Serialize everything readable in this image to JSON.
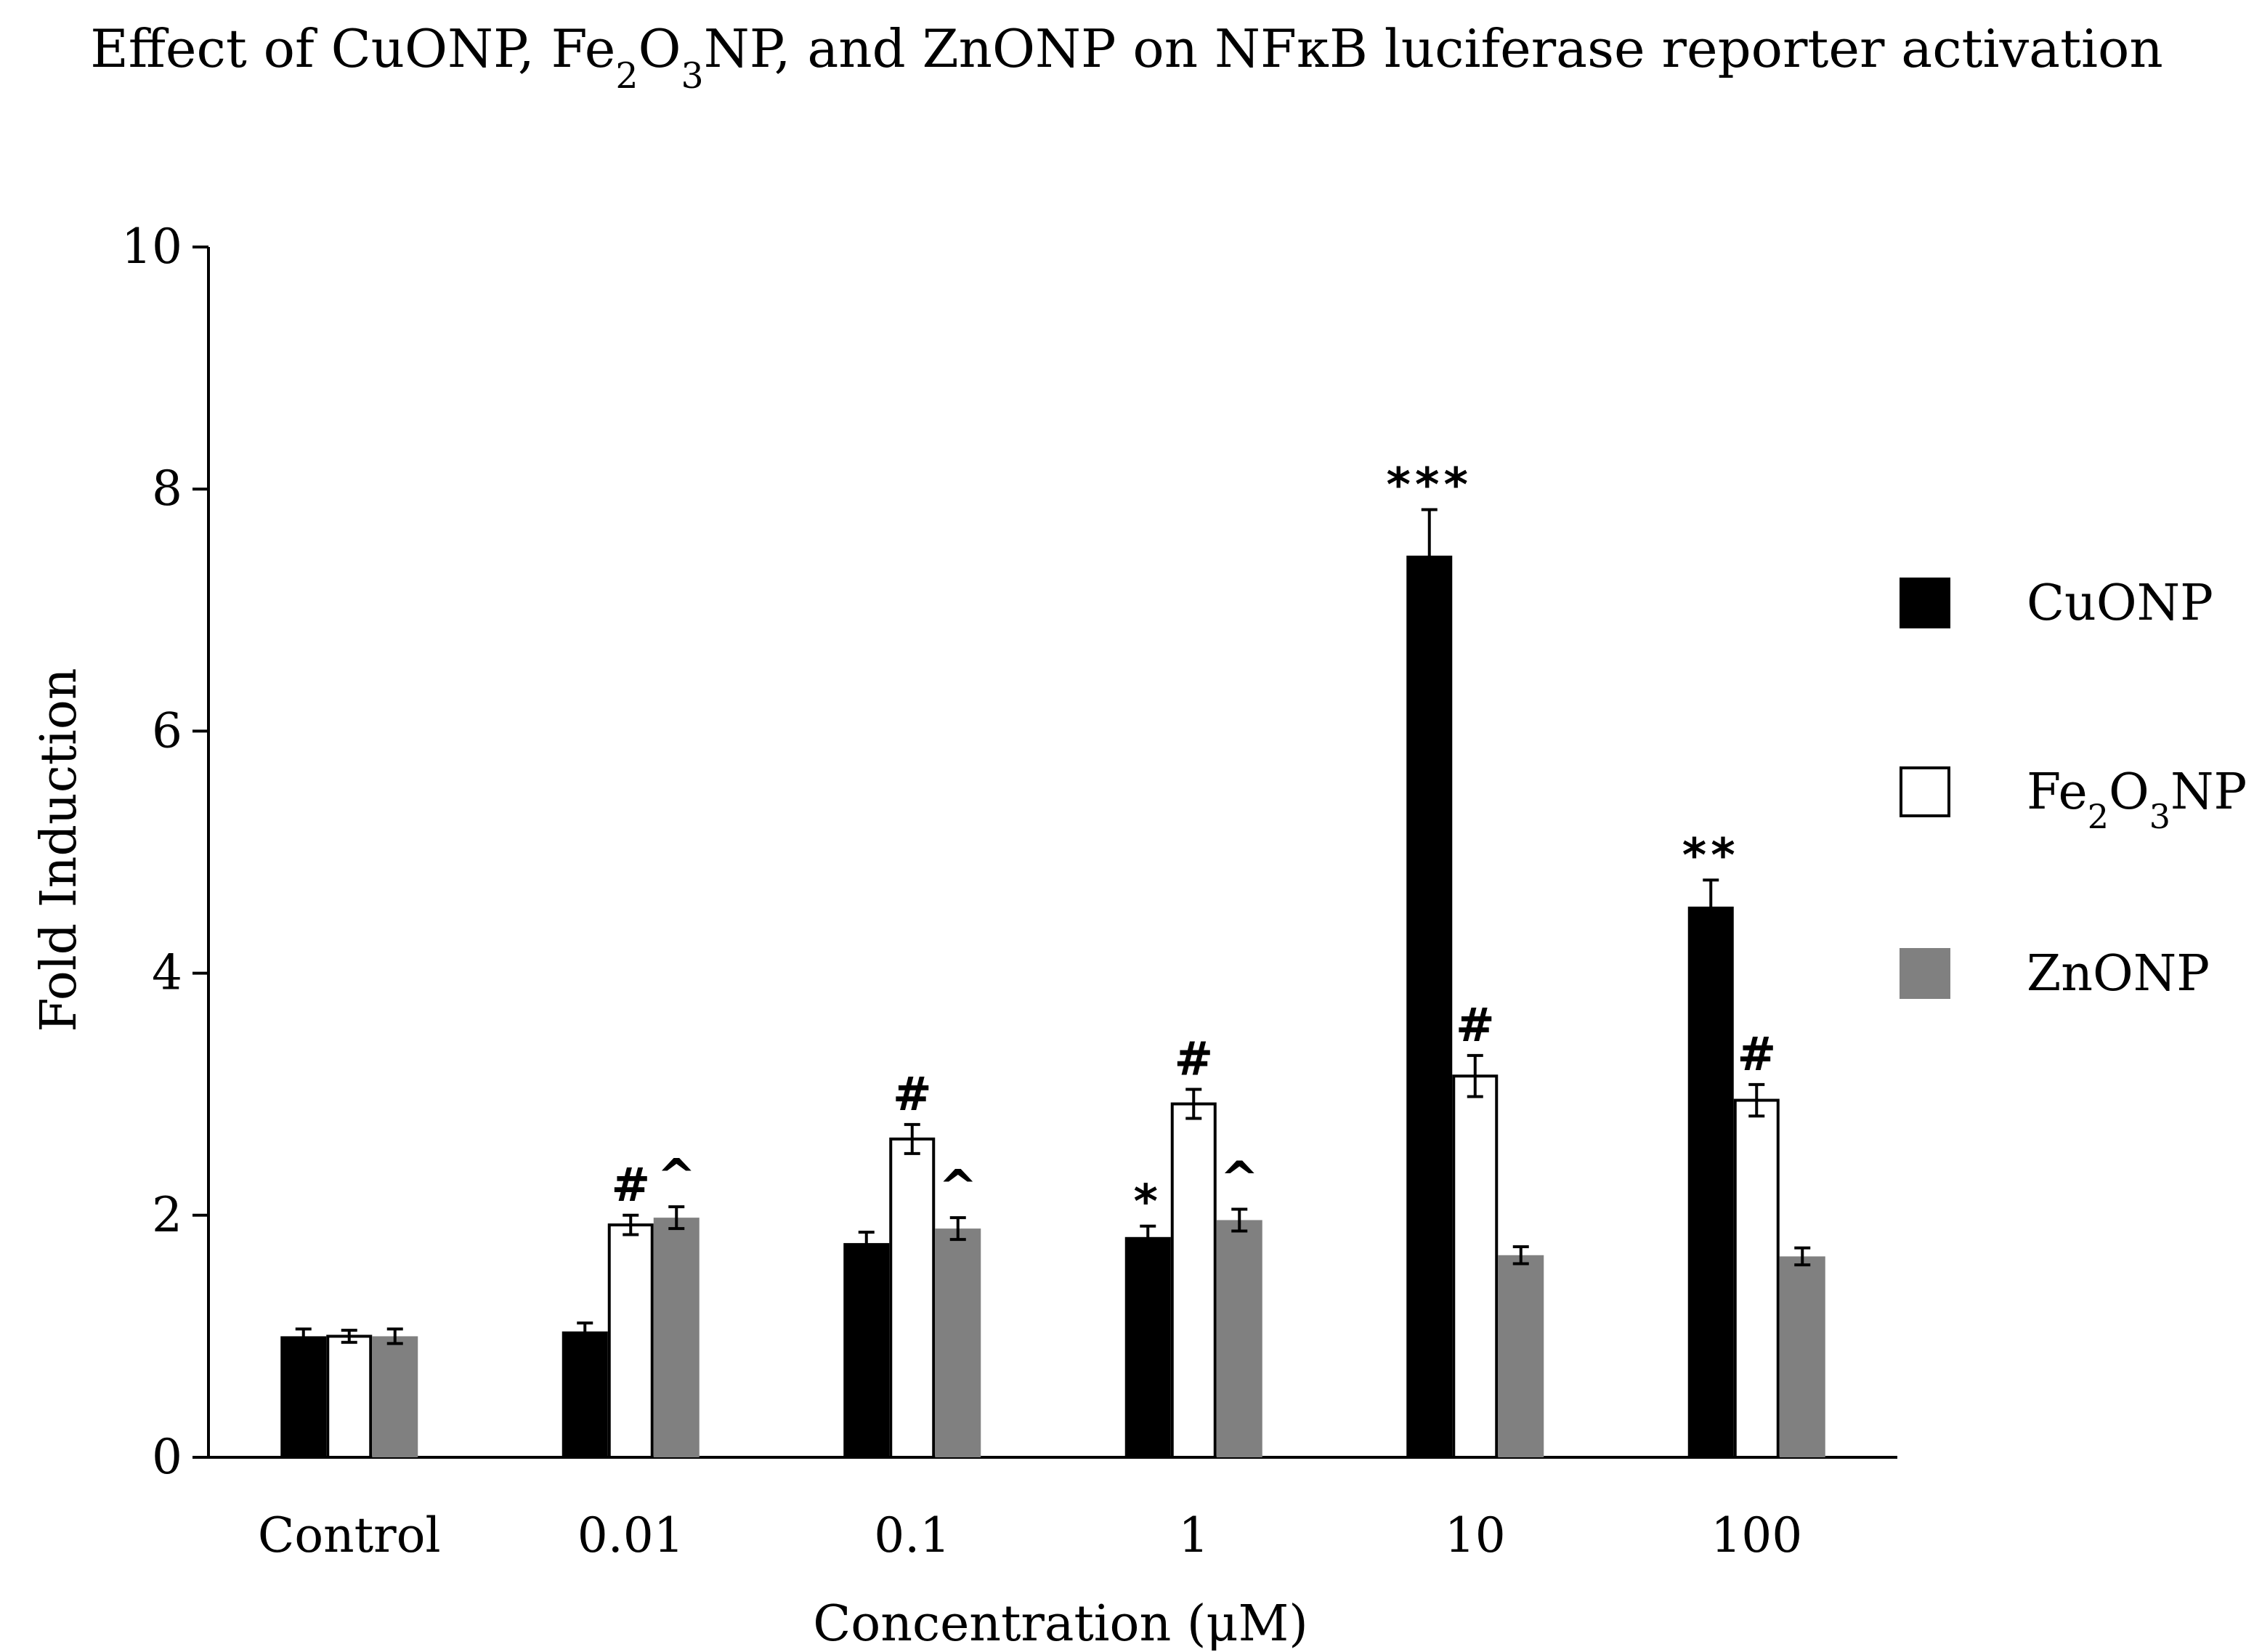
{
  "chart_data": {
    "type": "bar",
    "title_parts": [
      {
        "text": "Effect of CuONP, Fe",
        "sub": false
      },
      {
        "text": "2",
        "sub": true
      },
      {
        "text": "O",
        "sub": false
      },
      {
        "text": "3",
        "sub": true
      },
      {
        "text": "NP, and ZnONP on NFκB luciferase reporter activation",
        "sub": false
      }
    ],
    "xlabel": "Concentration (μM)",
    "ylabel": "Fold Induction",
    "ylim": [
      0,
      10
    ],
    "yticks": [
      0,
      2,
      4,
      6,
      8,
      10
    ],
    "categories": [
      "Control",
      "0.01",
      "0.1",
      "1",
      "10",
      "100"
    ],
    "series": [
      {
        "name": "CuONP",
        "label_parts": [
          {
            "text": "CuONP",
            "sub": false
          }
        ],
        "color": "#000000",
        "fill": "#000000",
        "values": [
          1.0,
          1.04,
          1.77,
          1.82,
          7.45,
          4.55
        ],
        "errors": [
          0.06,
          0.07,
          0.09,
          0.09,
          0.38,
          0.22
        ],
        "annotations": [
          "",
          "",
          "",
          "*",
          "***",
          "**"
        ]
      },
      {
        "name": "Fe2O3NP",
        "label_parts": [
          {
            "text": "Fe",
            "sub": false
          },
          {
            "text": "2",
            "sub": true
          },
          {
            "text": "O",
            "sub": false
          },
          {
            "text": "3",
            "sub": true
          },
          {
            "text": "NP",
            "sub": false
          }
        ],
        "color": "#000000",
        "fill": "#ffffff",
        "values": [
          1.0,
          1.92,
          2.63,
          2.92,
          3.15,
          2.95
        ],
        "errors": [
          0.05,
          0.08,
          0.12,
          0.12,
          0.17,
          0.13
        ],
        "annotations": [
          "",
          "#",
          "#",
          "#",
          "#",
          "#"
        ]
      },
      {
        "name": "ZnONP",
        "label_parts": [
          {
            "text": "ZnONP",
            "sub": false
          }
        ],
        "color": "#808080",
        "fill": "#808080",
        "values": [
          1.0,
          1.98,
          1.89,
          1.96,
          1.67,
          1.66
        ],
        "errors": [
          0.06,
          0.09,
          0.09,
          0.09,
          0.07,
          0.07
        ],
        "annotations": [
          "",
          "^",
          "^",
          "^",
          "",
          ""
        ]
      }
    ],
    "legend": "right",
    "grid": false
  }
}
